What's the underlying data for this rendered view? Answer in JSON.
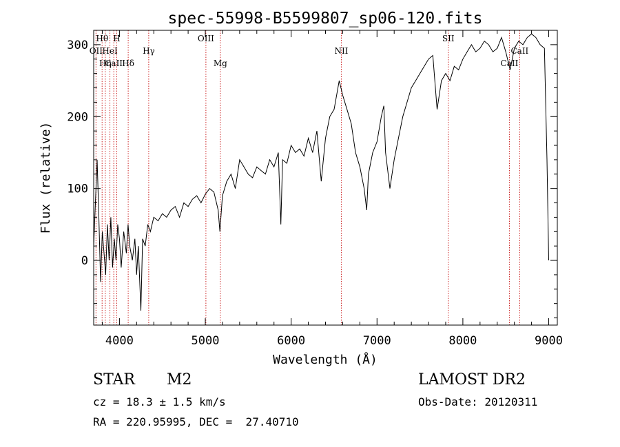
{
  "chart_data": {
    "type": "line",
    "title": "spec-55998-B5599807_sp06-120.fits",
    "xlabel": "Wavelength (Å)",
    "ylabel": "Flux (relative)",
    "xlim": [
      3700,
      9100
    ],
    "ylim": [
      -90,
      320
    ],
    "xticks": [
      4000,
      5000,
      6000,
      7000,
      8000,
      9000
    ],
    "yticks": [
      0,
      100,
      200,
      300
    ],
    "grid": false,
    "series": [
      {
        "points": [
          [
            3700,
            20
          ],
          [
            3720,
            80
          ],
          [
            3740,
            140
          ],
          [
            3760,
            60
          ],
          [
            3780,
            -30
          ],
          [
            3800,
            40
          ],
          [
            3820,
            10
          ],
          [
            3840,
            -20
          ],
          [
            3860,
            50
          ],
          [
            3880,
            0
          ],
          [
            3900,
            60
          ],
          [
            3920,
            -10
          ],
          [
            3940,
            30
          ],
          [
            3960,
            0
          ],
          [
            3980,
            50
          ],
          [
            4000,
            30
          ],
          [
            4020,
            -10
          ],
          [
            4050,
            40
          ],
          [
            4080,
            10
          ],
          [
            4100,
            50
          ],
          [
            4120,
            20
          ],
          [
            4150,
            0
          ],
          [
            4180,
            30
          ],
          [
            4200,
            -20
          ],
          [
            4220,
            20
          ],
          [
            4250,
            -70
          ],
          [
            4270,
            30
          ],
          [
            4300,
            20
          ],
          [
            4330,
            50
          ],
          [
            4360,
            40
          ],
          [
            4400,
            60
          ],
          [
            4450,
            55
          ],
          [
            4500,
            65
          ],
          [
            4550,
            60
          ],
          [
            4600,
            70
          ],
          [
            4650,
            75
          ],
          [
            4700,
            60
          ],
          [
            4750,
            80
          ],
          [
            4800,
            75
          ],
          [
            4850,
            85
          ],
          [
            4900,
            90
          ],
          [
            4950,
            80
          ],
          [
            5000,
            92
          ],
          [
            5050,
            100
          ],
          [
            5100,
            95
          ],
          [
            5150,
            70
          ],
          [
            5170,
            40
          ],
          [
            5200,
            90
          ],
          [
            5250,
            110
          ],
          [
            5300,
            120
          ],
          [
            5350,
            100
          ],
          [
            5400,
            140
          ],
          [
            5450,
            130
          ],
          [
            5500,
            120
          ],
          [
            5550,
            115
          ],
          [
            5600,
            130
          ],
          [
            5650,
            125
          ],
          [
            5700,
            120
          ],
          [
            5750,
            140
          ],
          [
            5800,
            130
          ],
          [
            5850,
            150
          ],
          [
            5880,
            50
          ],
          [
            5900,
            140
          ],
          [
            5950,
            135
          ],
          [
            6000,
            160
          ],
          [
            6050,
            150
          ],
          [
            6100,
            155
          ],
          [
            6150,
            145
          ],
          [
            6200,
            170
          ],
          [
            6250,
            150
          ],
          [
            6300,
            180
          ],
          [
            6350,
            110
          ],
          [
            6400,
            170
          ],
          [
            6450,
            200
          ],
          [
            6500,
            210
          ],
          [
            6560,
            250
          ],
          [
            6600,
            230
          ],
          [
            6650,
            210
          ],
          [
            6700,
            190
          ],
          [
            6750,
            150
          ],
          [
            6800,
            130
          ],
          [
            6850,
            100
          ],
          [
            6880,
            70
          ],
          [
            6900,
            120
          ],
          [
            6950,
            150
          ],
          [
            7000,
            165
          ],
          [
            7050,
            200
          ],
          [
            7080,
            215
          ],
          [
            7100,
            150
          ],
          [
            7150,
            100
          ],
          [
            7200,
            140
          ],
          [
            7250,
            170
          ],
          [
            7300,
            200
          ],
          [
            7350,
            220
          ],
          [
            7400,
            240
          ],
          [
            7450,
            250
          ],
          [
            7500,
            260
          ],
          [
            7550,
            270
          ],
          [
            7600,
            280
          ],
          [
            7650,
            285
          ],
          [
            7700,
            210
          ],
          [
            7750,
            250
          ],
          [
            7800,
            260
          ],
          [
            7850,
            250
          ],
          [
            7900,
            270
          ],
          [
            7950,
            265
          ],
          [
            8000,
            280
          ],
          [
            8050,
            290
          ],
          [
            8100,
            300
          ],
          [
            8150,
            290
          ],
          [
            8200,
            295
          ],
          [
            8250,
            305
          ],
          [
            8300,
            300
          ],
          [
            8350,
            290
          ],
          [
            8400,
            295
          ],
          [
            8450,
            310
          ],
          [
            8500,
            290
          ],
          [
            8550,
            265
          ],
          [
            8600,
            295
          ],
          [
            8650,
            305
          ],
          [
            8700,
            300
          ],
          [
            8750,
            310
          ],
          [
            8800,
            315
          ],
          [
            8850,
            310
          ],
          [
            8900,
            300
          ],
          [
            8950,
            295
          ],
          [
            8980,
            140
          ],
          [
            9000,
            0
          ]
        ]
      }
    ],
    "lines": [
      {
        "label": "Hθ",
        "x": 3798,
        "row": 0
      },
      {
        "label": "H",
        "x": 3969,
        "row": 0
      },
      {
        "label": "OII",
        "x": 3727,
        "row": 1
      },
      {
        "label": "HeI",
        "x": 3889,
        "row": 1
      },
      {
        "label": "Hγ",
        "x": 4341,
        "row": 1
      },
      {
        "label": "OIII",
        "x": 5007,
        "row": 0
      },
      {
        "label": "NII",
        "x": 6584,
        "row": 1
      },
      {
        "label": "SII",
        "x": 7830,
        "row": 0
      },
      {
        "label": "CaII",
        "x": 3934,
        "row": 2
      },
      {
        "label": "Hη",
        "x": 3835,
        "row": 2
      },
      {
        "label": "Hδ",
        "x": 4102,
        "row": 2
      },
      {
        "label": "Mg",
        "x": 5175,
        "row": 2
      },
      {
        "label": "CaII",
        "x": 8542,
        "row": 2
      },
      {
        "label": "CaII",
        "x": 8662,
        "row": 1
      }
    ]
  },
  "info": {
    "class": "STAR",
    "subclass": "M2",
    "survey": "LAMOST DR2",
    "cz": "cz = 18.3 ± 1.5 km/s",
    "obs_date": "Obs-Date: 20120311",
    "coords": "RA = 220.95995, DEC =  27.40710"
  },
  "colors": {
    "spectrum": "#000000",
    "line_marker": "#cc2222"
  }
}
